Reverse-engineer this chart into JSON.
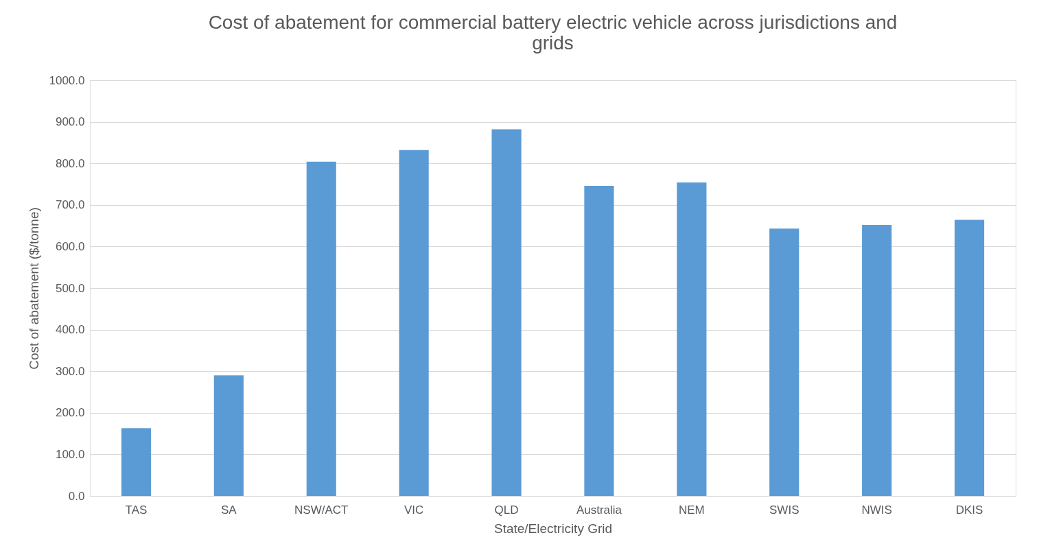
{
  "chart_data": {
    "type": "bar",
    "title": "Cost of abatement for commercial battery electric vehicle across jurisdictions and grids",
    "xlabel": "State/Electricity Grid",
    "ylabel": "Cost of abatement ($/tonne)",
    "categories": [
      "TAS",
      "SA",
      "NSW/ACT",
      "VIC",
      "QLD",
      "Australia",
      "NEM",
      "SWIS",
      "NWIS",
      "DKIS"
    ],
    "values": [
      163,
      290,
      804,
      832,
      882,
      746,
      754,
      643,
      652,
      664
    ],
    "color": "#5b9bd5",
    "ylim": [
      0,
      1000
    ],
    "yticks": [
      {
        "value": 0,
        "label": "0.0"
      },
      {
        "value": 100,
        "label": "100.0"
      },
      {
        "value": 200,
        "label": "200.0"
      },
      {
        "value": 300,
        "label": "300.0"
      },
      {
        "value": 400,
        "label": "400.0"
      },
      {
        "value": 500,
        "label": "500.0"
      },
      {
        "value": 600,
        "label": "600.0"
      },
      {
        "value": 700,
        "label": "700.0"
      },
      {
        "value": 800,
        "label": "800.0"
      },
      {
        "value": 900,
        "label": "900.0"
      },
      {
        "value": 1000,
        "label": "1000.0"
      }
    ],
    "grid": "y"
  }
}
